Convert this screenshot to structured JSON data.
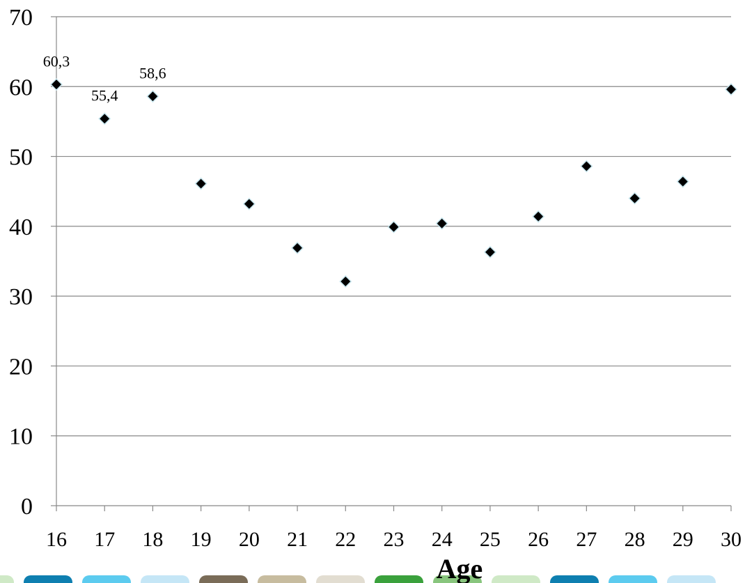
{
  "chart_data": {
    "type": "scatter",
    "title": "",
    "xlabel": "Age",
    "ylabel": "",
    "xlim": [
      16,
      30
    ],
    "ylim": [
      0,
      70
    ],
    "x_ticks": [
      16,
      17,
      18,
      19,
      20,
      21,
      22,
      23,
      24,
      25,
      26,
      27,
      28,
      29,
      30
    ],
    "y_ticks": [
      0,
      10,
      20,
      30,
      40,
      50,
      60,
      70
    ],
    "grid": "horizontal",
    "legend": "none",
    "series": [
      {
        "marker": "diamond",
        "color": "#000000",
        "points": [
          {
            "x": 16,
            "y": 60.3,
            "label": "60,3"
          },
          {
            "x": 17,
            "y": 55.4,
            "label": "55,4"
          },
          {
            "x": 18,
            "y": 58.6,
            "label": "58,6"
          },
          {
            "x": 19,
            "y": 46.1
          },
          {
            "x": 20,
            "y": 43.2
          },
          {
            "x": 21,
            "y": 36.9
          },
          {
            "x": 22,
            "y": 32.1
          },
          {
            "x": 23,
            "y": 39.9
          },
          {
            "x": 24,
            "y": 40.4
          },
          {
            "x": 25,
            "y": 36.3
          },
          {
            "x": 26,
            "y": 41.4
          },
          {
            "x": 27,
            "y": 48.6
          },
          {
            "x": 28,
            "y": 44.0
          },
          {
            "x": 29,
            "y": 46.4
          },
          {
            "x": 30,
            "y": 59.6
          }
        ]
      }
    ]
  },
  "bottom_strip": {
    "swatches": [
      "#cfe9c6",
      "#0e7fb0",
      "#5ccbef",
      "#c5e6f6",
      "#7a6c58",
      "#c7bc9f",
      "#e2ddd1",
      "#3aa13c",
      "#88c57d",
      "#cfe9c6",
      "#0e7fb0",
      "#5ccbef",
      "#c5e6f6"
    ]
  },
  "colors": {
    "gridline": "#888888",
    "axis": "#888888",
    "marker_fill": "#000000",
    "marker_stroke": "#c8e6ee"
  }
}
